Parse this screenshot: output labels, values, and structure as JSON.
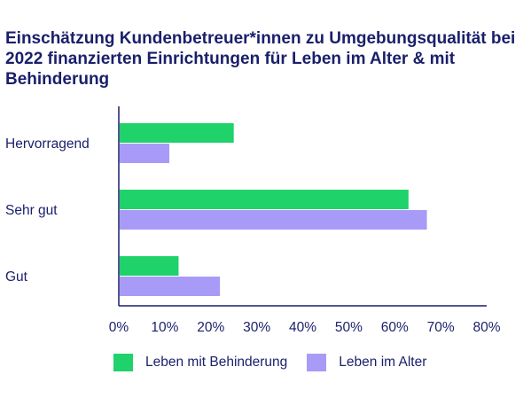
{
  "chart_data": {
    "type": "bar",
    "orientation": "horizontal",
    "title": "Einschätzung Kundenbetreuer*innen zu Umgebungsqualität bei 2022 finanzierten Einrichtungen für Leben im Alter & mit Behinderung",
    "categories": [
      "Hervorragend",
      "Sehr gut",
      "Gut"
    ],
    "series": [
      {
        "name": "Leben mit Behinderung",
        "color": "#1fd26a",
        "values": [
          25,
          63,
          13
        ]
      },
      {
        "name": "Leben im Alter",
        "color": "#a89bf8",
        "values": [
          11,
          67,
          22
        ]
      }
    ],
    "xlim": [
      0,
      80
    ],
    "xticks": [
      "0%",
      "10%",
      "20%",
      "30%",
      "40%",
      "50%",
      "60%",
      "70%",
      "80%"
    ],
    "grid": false,
    "legend_position": "bottom"
  }
}
